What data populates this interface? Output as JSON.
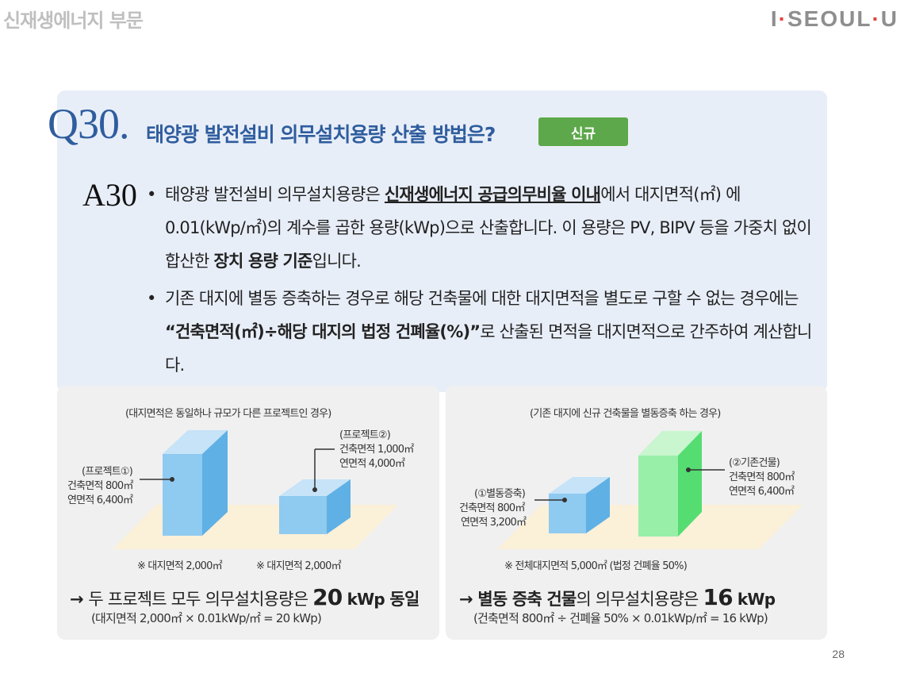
{
  "header": {
    "section": "신재생에너지 부문",
    "brand_left": "I",
    "brand_mid": "SEOUL",
    "brand_right": "U",
    "brand_dot": "·",
    "brand_accent": "#e0463a"
  },
  "question": {
    "number": "Q30.",
    "title": "태양광 발전설비 의무설치용량 산출 방법은?",
    "badge": "신규",
    "badge_color": "#5da84a",
    "title_color": "#2f5d9e"
  },
  "answer": {
    "number": "A30",
    "bullet": "•",
    "p1": {
      "t1": "태양광 발전설비 의무설치용량은 ",
      "u1": "신재생에너지 공급의무비율 이내",
      "t2": "에서 대지면적(㎡) 에 0.01(kWp/㎡)의 계수를 곱한 용량(kWp)으로 산출합니다. 이 용량은 PV, BIPV 등을 가중치 없이 합산한 ",
      "b1": "장치 용량 기준",
      "t3": "입니다."
    },
    "p2": {
      "t1": "기존 대지에 별동 증축하는 경우로 해당 건축물에 대한 대지면적을 별도로 구할 수 없는 경우에는 ",
      "b1": "“건축면적(㎡)÷해당 대지의 법정 건폐율(%)”",
      "t2": "로 산출된 면적을 대지면적으로 간주하여 계산합니다."
    }
  },
  "left_panel": {
    "caption": "(대지면적은 동일하나 규모가 다른 프로젝트인 경우)",
    "project1": {
      "name": "(프로젝트①)",
      "area": "건축면적 800㎡",
      "floor": "연면적 6,400㎡"
    },
    "project2": {
      "name": "(프로젝트②)",
      "area": "건축면적 1,000㎡",
      "floor": "연면적  4,000㎡"
    },
    "site1": "※ 대지면적 2,000㎡",
    "site2": "※ 대지면적 2,000㎡",
    "arrow": "→",
    "conclusion_pre": "두 프로젝트 모두 의무설치용량은 ",
    "conclusion_value": "20",
    "conclusion_unit": " kWp",
    "conclusion_post": " 동일",
    "formula": "(대지면적 2,000㎡ × 0.01kWp/㎡ = 20 kWp)"
  },
  "right_panel": {
    "caption": "(기존 대지에 신규 건축물을 별동증축 하는 경우)",
    "annex": {
      "name": "(①별동증축)",
      "area": "건축면적 800㎡",
      "floor": "연면적 3,200㎡"
    },
    "existing": {
      "name": "(②기존건물)",
      "area": "건축면적 800㎡",
      "floor": "연면적 6,400㎡"
    },
    "site": "※ 전체대지면적 5,000㎡ (법정 건폐율 50%)",
    "arrow": "→",
    "conclusion_bold": "별동 증축 건물",
    "conclusion_pre": "의 의무설치용량은 ",
    "conclusion_value": "16",
    "conclusion_unit": " kWp",
    "formula": "(건축면적 800㎡ ÷ 건폐율 50% × 0.01kWp/㎡ = 16 kWp)"
  },
  "page_number": "28"
}
